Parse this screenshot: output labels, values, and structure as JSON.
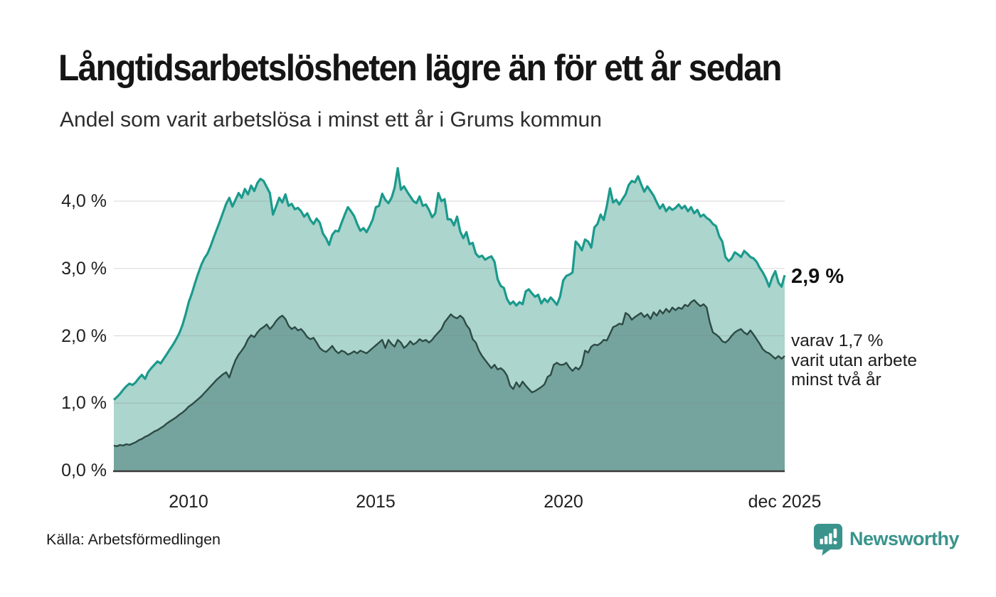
{
  "header": {
    "title": "Långtidsarbetslösheten lägre än för ett år sedan",
    "subtitle": "Andel som varit arbetslösa i minst ett år i Grums kommun"
  },
  "chart_data": {
    "type": "area",
    "title": "Långtidsarbetslösheten lägre än för ett år sedan",
    "subtitle": "Andel som varit arbetslösa i minst ett år i Grums kommun",
    "unit": "%",
    "frequency": "monthly",
    "x_range": [
      "2008-01",
      "2025-12"
    ],
    "ylim": [
      0,
      4.6
    ],
    "grid": "horizontal",
    "gridline_color": "rgba(130,130,130,0.32)",
    "axis_color": "#3a3a3a",
    "y_ticks": [
      "0,0 %",
      "1,0 %",
      "2,0 %",
      "3,0 %",
      "4,0 %"
    ],
    "x_ticks": [
      {
        "label": "2010",
        "index": 24
      },
      {
        "label": "2015",
        "index": 84
      },
      {
        "label": "2020",
        "index": 144
      },
      {
        "label": "dec 2025",
        "index": 215
      }
    ],
    "series": [
      {
        "name": "Andel arbetslösa minst ett år",
        "line_color": "#1a9a8c",
        "fill_color": "#abd5cd",
        "values": [
          1.05,
          1.09,
          1.14,
          1.2,
          1.25,
          1.29,
          1.27,
          1.31,
          1.37,
          1.42,
          1.36,
          1.46,
          1.52,
          1.57,
          1.62,
          1.59,
          1.66,
          1.73,
          1.8,
          1.87,
          1.95,
          2.04,
          2.16,
          2.32,
          2.5,
          2.63,
          2.78,
          2.92,
          3.05,
          3.15,
          3.22,
          3.33,
          3.46,
          3.58,
          3.7,
          3.83,
          3.96,
          4.05,
          3.92,
          4.02,
          4.12,
          4.05,
          4.18,
          4.1,
          4.23,
          4.15,
          4.27,
          4.33,
          4.3,
          4.21,
          4.12,
          3.8,
          3.92,
          4.05,
          3.98,
          4.1,
          3.93,
          3.96,
          3.88,
          3.9,
          3.85,
          3.77,
          3.82,
          3.72,
          3.66,
          3.74,
          3.68,
          3.52,
          3.45,
          3.35,
          3.5,
          3.56,
          3.55,
          3.68,
          3.8,
          3.91,
          3.85,
          3.78,
          3.66,
          3.56,
          3.6,
          3.54,
          3.63,
          3.73,
          3.91,
          3.93,
          4.11,
          4.02,
          3.97,
          4.05,
          4.2,
          4.49,
          4.17,
          4.22,
          4.14,
          4.07,
          4.0,
          3.97,
          4.07,
          3.93,
          3.95,
          3.87,
          3.76,
          3.82,
          4.12,
          4.0,
          4.03,
          3.73,
          3.73,
          3.64,
          3.77,
          3.55,
          3.45,
          3.54,
          3.36,
          3.38,
          3.22,
          3.17,
          3.19,
          3.13,
          3.16,
          3.18,
          3.1,
          2.84,
          2.74,
          2.71,
          2.55,
          2.47,
          2.51,
          2.45,
          2.5,
          2.47,
          2.66,
          2.69,
          2.63,
          2.58,
          2.61,
          2.48,
          2.55,
          2.5,
          2.57,
          2.52,
          2.46,
          2.58,
          2.82,
          2.89,
          2.91,
          2.94,
          3.4,
          3.35,
          3.27,
          3.43,
          3.4,
          3.31,
          3.61,
          3.66,
          3.8,
          3.72,
          3.93,
          4.19,
          3.98,
          4.02,
          3.95,
          4.03,
          4.1,
          4.24,
          4.3,
          4.28,
          4.37,
          4.25,
          4.14,
          4.22,
          4.15,
          4.08,
          3.98,
          3.89,
          3.95,
          3.85,
          3.91,
          3.87,
          3.9,
          3.95,
          3.89,
          3.93,
          3.85,
          3.91,
          3.82,
          3.87,
          3.77,
          3.8,
          3.75,
          3.72,
          3.66,
          3.63,
          3.48,
          3.4,
          3.17,
          3.11,
          3.15,
          3.24,
          3.21,
          3.17,
          3.26,
          3.22,
          3.17,
          3.15,
          3.1,
          3.01,
          2.94,
          2.85,
          2.73,
          2.87,
          2.96,
          2.79,
          2.73,
          2.9
        ]
      },
      {
        "name": "varav arbetslösa minst två år",
        "line_color": "#2e4a45",
        "fill_color": "#74a49d",
        "values": [
          0.37,
          0.36,
          0.38,
          0.37,
          0.39,
          0.38,
          0.4,
          0.42,
          0.45,
          0.47,
          0.5,
          0.52,
          0.55,
          0.58,
          0.6,
          0.63,
          0.66,
          0.7,
          0.73,
          0.76,
          0.79,
          0.83,
          0.86,
          0.9,
          0.95,
          0.98,
          1.02,
          1.06,
          1.1,
          1.15,
          1.2,
          1.25,
          1.3,
          1.35,
          1.39,
          1.43,
          1.46,
          1.38,
          1.52,
          1.64,
          1.72,
          1.78,
          1.85,
          1.95,
          2.01,
          1.98,
          2.05,
          2.1,
          2.13,
          2.17,
          2.1,
          2.15,
          2.22,
          2.27,
          2.3,
          2.25,
          2.15,
          2.1,
          2.13,
          2.08,
          2.1,
          2.05,
          1.98,
          1.95,
          1.97,
          1.9,
          1.82,
          1.78,
          1.76,
          1.8,
          1.85,
          1.78,
          1.74,
          1.78,
          1.76,
          1.72,
          1.74,
          1.77,
          1.74,
          1.78,
          1.76,
          1.74,
          1.78,
          1.82,
          1.86,
          1.9,
          1.94,
          1.82,
          1.94,
          1.88,
          1.84,
          1.94,
          1.9,
          1.82,
          1.86,
          1.92,
          1.87,
          1.9,
          1.95,
          1.92,
          1.94,
          1.9,
          1.94,
          2.0,
          2.05,
          2.1,
          2.2,
          2.26,
          2.32,
          2.28,
          2.26,
          2.3,
          2.26,
          2.16,
          2.1,
          1.95,
          1.9,
          1.78,
          1.7,
          1.64,
          1.58,
          1.52,
          1.57,
          1.5,
          1.52,
          1.48,
          1.41,
          1.26,
          1.21,
          1.31,
          1.24,
          1.32,
          1.26,
          1.21,
          1.16,
          1.18,
          1.21,
          1.24,
          1.28,
          1.39,
          1.42,
          1.57,
          1.6,
          1.57,
          1.57,
          1.6,
          1.53,
          1.48,
          1.53,
          1.5,
          1.57,
          1.78,
          1.75,
          1.84,
          1.87,
          1.86,
          1.89,
          1.94,
          1.93,
          2.03,
          2.13,
          2.15,
          2.18,
          2.17,
          2.34,
          2.31,
          2.24,
          2.28,
          2.31,
          2.34,
          2.28,
          2.32,
          2.25,
          2.35,
          2.3,
          2.38,
          2.33,
          2.4,
          2.35,
          2.42,
          2.38,
          2.42,
          2.4,
          2.46,
          2.44,
          2.5,
          2.53,
          2.48,
          2.44,
          2.47,
          2.42,
          2.2,
          2.05,
          2.02,
          1.98,
          1.92,
          1.9,
          1.94,
          2.0,
          2.05,
          2.08,
          2.1,
          2.05,
          2.02,
          2.08,
          2.02,
          1.95,
          1.88,
          1.8,
          1.76,
          1.74,
          1.7,
          1.66,
          1.7,
          1.66,
          1.7
        ]
      }
    ],
    "annotations": {
      "latest_value_label": "2,9 %",
      "secondary_line1": "varav 1,7 %",
      "secondary_line2": "varit utan arbete",
      "secondary_line3": "minst två år"
    }
  },
  "footer": {
    "source": "Källa: Arbetsförmedlingen",
    "brand": "Newsworthy"
  },
  "colors": {
    "brand_teal": "#3a948c",
    "line_primary": "#1a9a8c",
    "fill_primary": "#abd5cd",
    "line_secondary": "#2e4a45",
    "fill_secondary": "#74a49d"
  }
}
